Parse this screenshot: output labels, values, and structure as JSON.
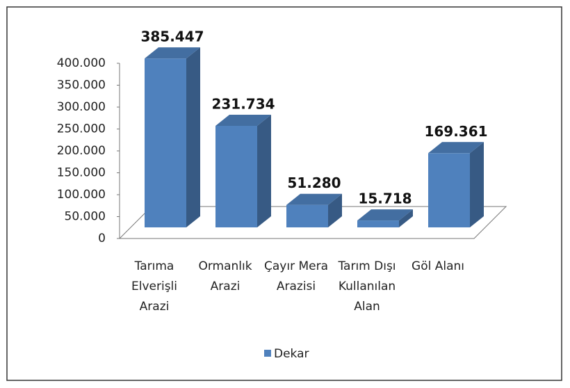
{
  "chart_data": {
    "type": "bar3d",
    "categories": [
      [
        "Tarıma",
        "Elverişli",
        "Arazi"
      ],
      [
        "Ormanlık",
        "Arazi"
      ],
      [
        "Çayır Mera",
        "Arazisi"
      ],
      [
        "Tarım Dışı",
        "Kullanılan",
        "Alan"
      ],
      [
        "Göl Alanı"
      ]
    ],
    "series": [
      {
        "name": "Dekar",
        "color": "#4f81bd",
        "values": [
          385447,
          231734,
          51280,
          15718,
          169361
        ],
        "value_labels": [
          "385.447",
          "231.734",
          "51.280",
          "15.718",
          "169.361"
        ]
      }
    ],
    "ylim": [
      0,
      400000
    ],
    "yticks": [
      0,
      {
        "value": 50000,
        "label": "50.000"
      },
      {
        "value": 100000,
        "label": "100.000"
      },
      {
        "value": 150000,
        "label": "150.000"
      },
      {
        "value": 200000,
        "label": "200.000"
      },
      {
        "value": 250000,
        "label": "250.000"
      },
      {
        "value": 300000,
        "label": "300.000"
      },
      {
        "value": 350000,
        "label": "350.000"
      },
      {
        "value": 400000,
        "label": "400.000"
      }
    ],
    "legend": "bottom"
  }
}
